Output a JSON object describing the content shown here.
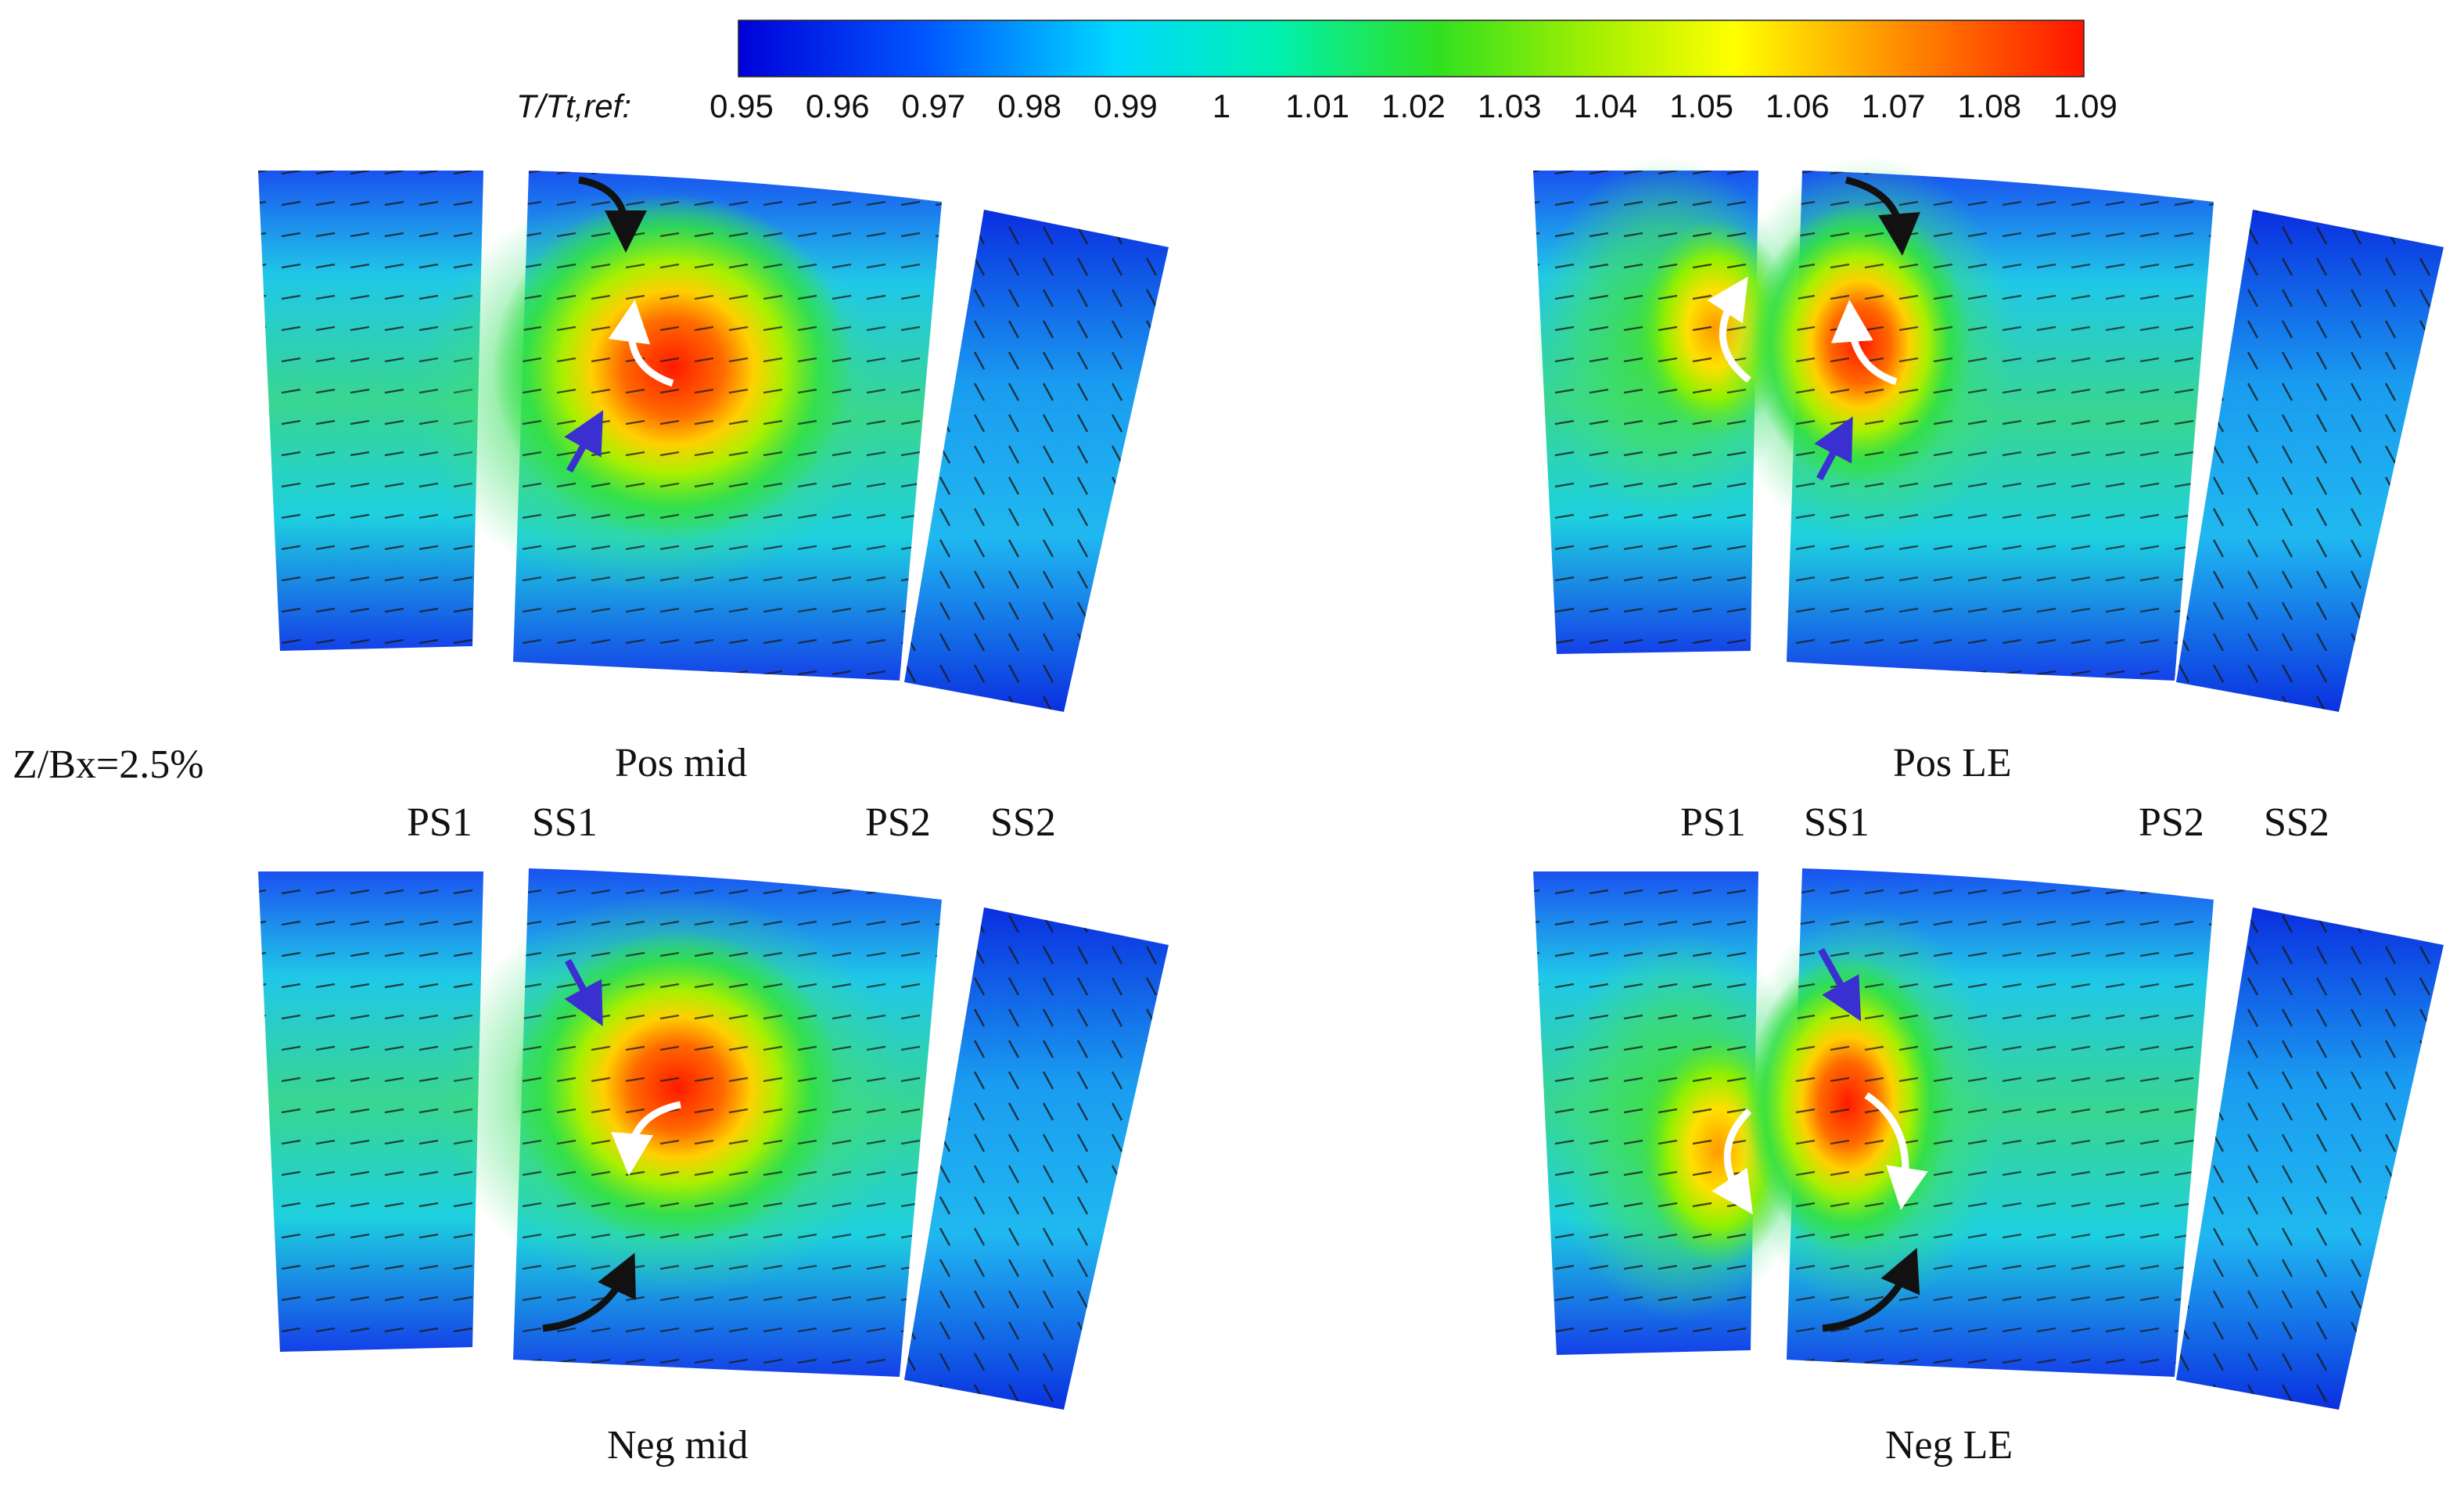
{
  "colorbar": {
    "title": "T/Tt,ref:",
    "ticks": [
      "0.95",
      "0.96",
      "0.97",
      "0.98",
      "0.99",
      "1",
      "1.01",
      "1.02",
      "1.03",
      "1.04",
      "1.05",
      "1.06",
      "1.07",
      "1.08",
      "1.09"
    ],
    "range": [
      0.95,
      1.09
    ],
    "colormap": [
      "#0000d8",
      "#0060ff",
      "#00d8ff",
      "#00f0a0",
      "#20e020",
      "#b0f000",
      "#ffff00",
      "#ff9a00",
      "#ff1800"
    ]
  },
  "location_label": "Z/Bx=2.5%",
  "passage_labels": {
    "left": [
      "PS1",
      "SS1",
      "PS2",
      "SS2"
    ],
    "right": [
      "PS1",
      "SS1",
      "PS2",
      "SS2"
    ]
  },
  "panels": [
    {
      "id": "pos-mid",
      "caption": "Pos mid",
      "hotspot_peak": 1.09
    },
    {
      "id": "pos-le",
      "caption": "Pos LE",
      "hotspot_peak": 1.08
    },
    {
      "id": "neg-mid",
      "caption": "Neg mid",
      "hotspot_peak": 1.09
    },
    {
      "id": "neg-le",
      "caption": "Neg LE",
      "hotspot_peak": 1.085
    }
  ],
  "arrow_colors": {
    "vortex": "#ffffff",
    "passage": "#111111",
    "secondary": "#3a2fd0"
  }
}
